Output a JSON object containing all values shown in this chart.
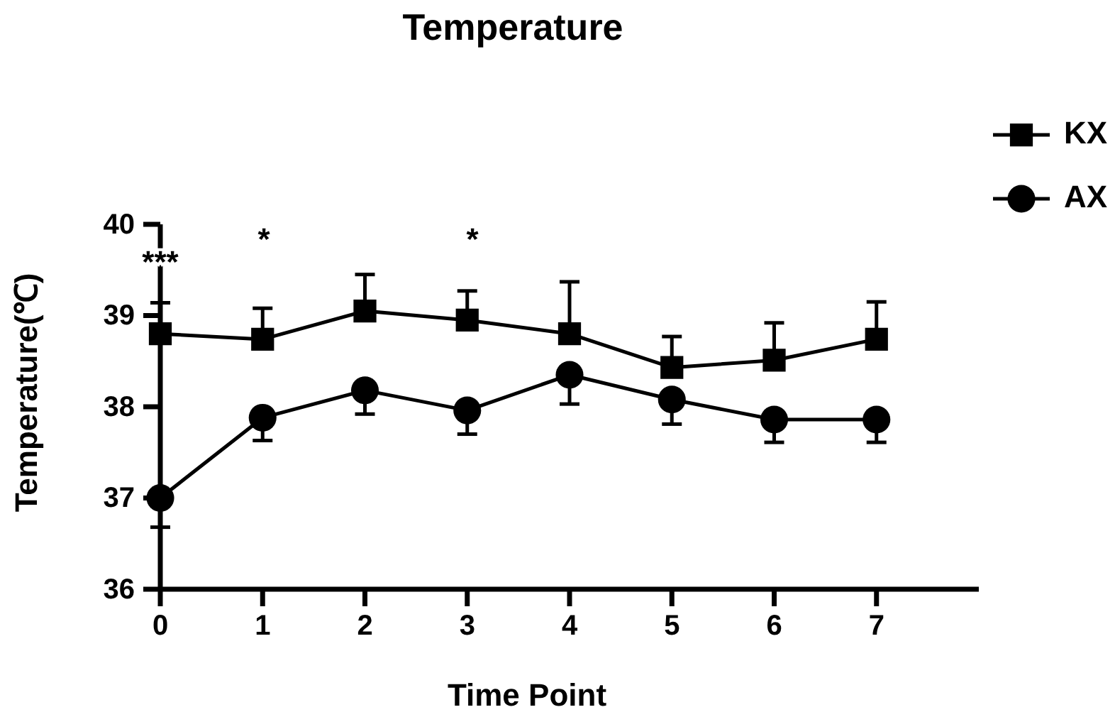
{
  "chart_data": {
    "type": "line",
    "title": "Temperature",
    "xlabel": "Time Point",
    "ylabel": "Temperature(℃)",
    "x": [
      0,
      1,
      2,
      3,
      4,
      5,
      6,
      7
    ],
    "xlim": [
      0,
      8
    ],
    "xticks": [
      0,
      1,
      2,
      3,
      4,
      5,
      6,
      7
    ],
    "ylim": [
      36,
      40
    ],
    "yticks": [
      36,
      37,
      38,
      39,
      40
    ],
    "grid": false,
    "legend": "top right",
    "line_style": "solid",
    "series": [
      {
        "name": "KX",
        "color": "#000000",
        "marker": "square",
        "values": [
          38.8,
          38.74,
          39.05,
          38.95,
          38.8,
          38.43,
          38.51,
          38.74
        ],
        "errors": [
          [
            38.8,
            39.14
          ],
          [
            38.74,
            39.08
          ],
          [
            39.05,
            39.45
          ],
          [
            38.95,
            39.27
          ],
          [
            38.8,
            39.37
          ],
          [
            38.43,
            38.77
          ],
          [
            38.51,
            38.92
          ],
          [
            38.74,
            39.15
          ]
        ]
      },
      {
        "name": "AX",
        "color": "#000000",
        "marker": "circle",
        "values": [
          37.0,
          37.88,
          38.18,
          37.96,
          38.35,
          38.08,
          37.86,
          37.86
        ],
        "errors": [
          [
            36.68,
            37.0
          ],
          [
            37.63,
            37.88
          ],
          [
            37.92,
            38.18
          ],
          [
            37.7,
            37.96
          ],
          [
            38.03,
            38.35
          ],
          [
            37.81,
            38.08
          ],
          [
            37.61,
            37.86
          ],
          [
            37.61,
            37.86
          ]
        ]
      }
    ],
    "annotations": [
      "***",
      "*",
      "*"
    ]
  }
}
